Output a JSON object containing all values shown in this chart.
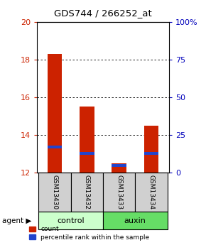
{
  "title": "GDS744 / 266252_at",
  "samples": [
    "GSM13430",
    "GSM13432",
    "GSM13433",
    "GSM13434"
  ],
  "ymin": 12,
  "ymax": 20,
  "yticks": [
    12,
    14,
    16,
    18,
    20
  ],
  "right_yticks": [
    0,
    25,
    50,
    75,
    100
  ],
  "right_yticklabels": [
    "0",
    "25",
    "50",
    "75",
    "100%"
  ],
  "red_tops": [
    18.3,
    15.5,
    12.5,
    14.5
  ],
  "blue_values": [
    13.38,
    13.02,
    12.38,
    13.02
  ],
  "red_color": "#cc2200",
  "blue_color": "#2244cc",
  "bg_color": "#ffffff",
  "control_color": "#ccffcc",
  "auxin_color": "#66dd66",
  "gsm_bg": "#d0d0d0",
  "legend_count_label": "count",
  "legend_pct_label": "percentile rank within the sample"
}
